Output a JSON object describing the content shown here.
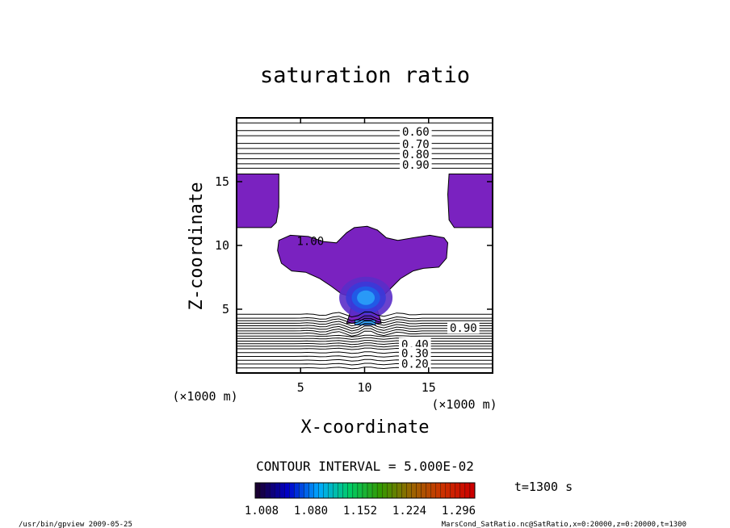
{
  "chart_data": {
    "type": "contour",
    "title": "saturation ratio",
    "xlabel": "X-coordinate",
    "ylabel": "Z-coordinate",
    "x_unit": "(×1000 m)",
    "y_unit": "(×1000 m)",
    "xlim": [
      0,
      20
    ],
    "ylim": [
      0,
      20
    ],
    "x_ticks": [
      5,
      10,
      15
    ],
    "y_ticks": [
      5,
      10,
      15
    ],
    "contour_interval_text": "CONTOUR INTERVAL = 5.000E-02",
    "time_text": "t=1300 s",
    "upper_contours": [
      {
        "label": "0.60",
        "z": 19.0
      },
      {
        "label": "0.70",
        "z": 18.0
      },
      {
        "label": "0.80",
        "z": 17.2
      },
      {
        "label": "0.90",
        "z": 16.4
      }
    ],
    "lower_contours": [
      {
        "label": "0.90",
        "z": 3.6
      },
      {
        "label": "0.40",
        "z": 2.3
      },
      {
        "label": "0.30",
        "z": 1.6
      },
      {
        "label": "0.20",
        "z": 0.8
      }
    ],
    "contour_1_label": "1.00",
    "colorbar": {
      "ticks": [
        "1.008",
        "1.080",
        "1.152",
        "1.224",
        "1.296"
      ],
      "min": 1.008,
      "max": 1.332,
      "colors": [
        "#1a0033",
        "#0000cc",
        "#00aaff",
        "#00cc66",
        "#339900",
        "#996600",
        "#cc3300",
        "#cc0000"
      ]
    },
    "fill_color": "#7a22c0",
    "core_colors": [
      "#5a2ec8",
      "#3a3ad8",
      "#1e5ee8",
      "#2aa0f8"
    ]
  },
  "footer": {
    "left": "/usr/bin/gpview  2009-05-25",
    "right": "MarsCond_SatRatio.nc@SatRatio,x=0:20000,z=0:20000,t=1300"
  }
}
